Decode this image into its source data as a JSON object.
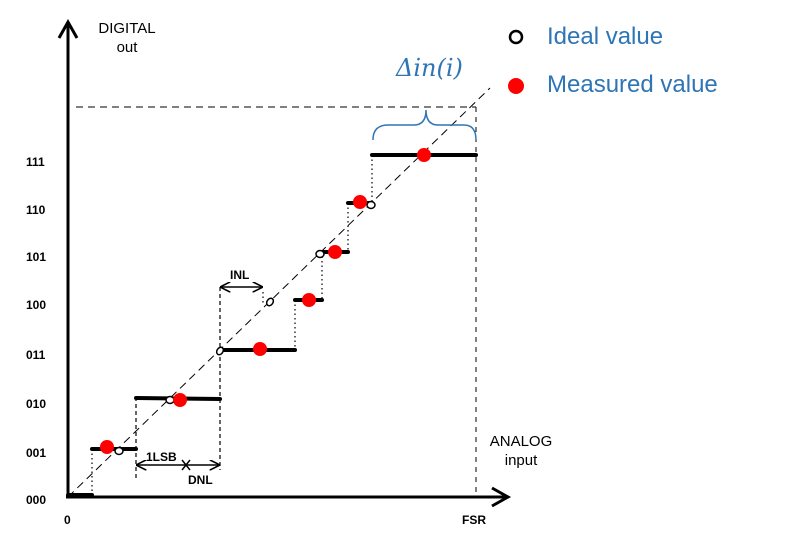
{
  "y_axis_title": [
    "DIGITAL",
    "out"
  ],
  "x_axis_title": [
    "ANALOG",
    "input"
  ],
  "y_ticks": [
    "000",
    "001",
    "010",
    "011",
    "100",
    "101",
    "110",
    "111"
  ],
  "x_ticks": [
    "0",
    "FSR"
  ],
  "annotations": {
    "inl": "INL",
    "one_lsb": "1LSB",
    "dnl": "DNL",
    "delta_in": "Δin(i)"
  },
  "legend": {
    "ideal": "Ideal value",
    "measured": "Measured value"
  },
  "colors": {
    "legend_text": "#2E75B6",
    "measured_point": "#FF0000",
    "steps": "#000000"
  }
}
